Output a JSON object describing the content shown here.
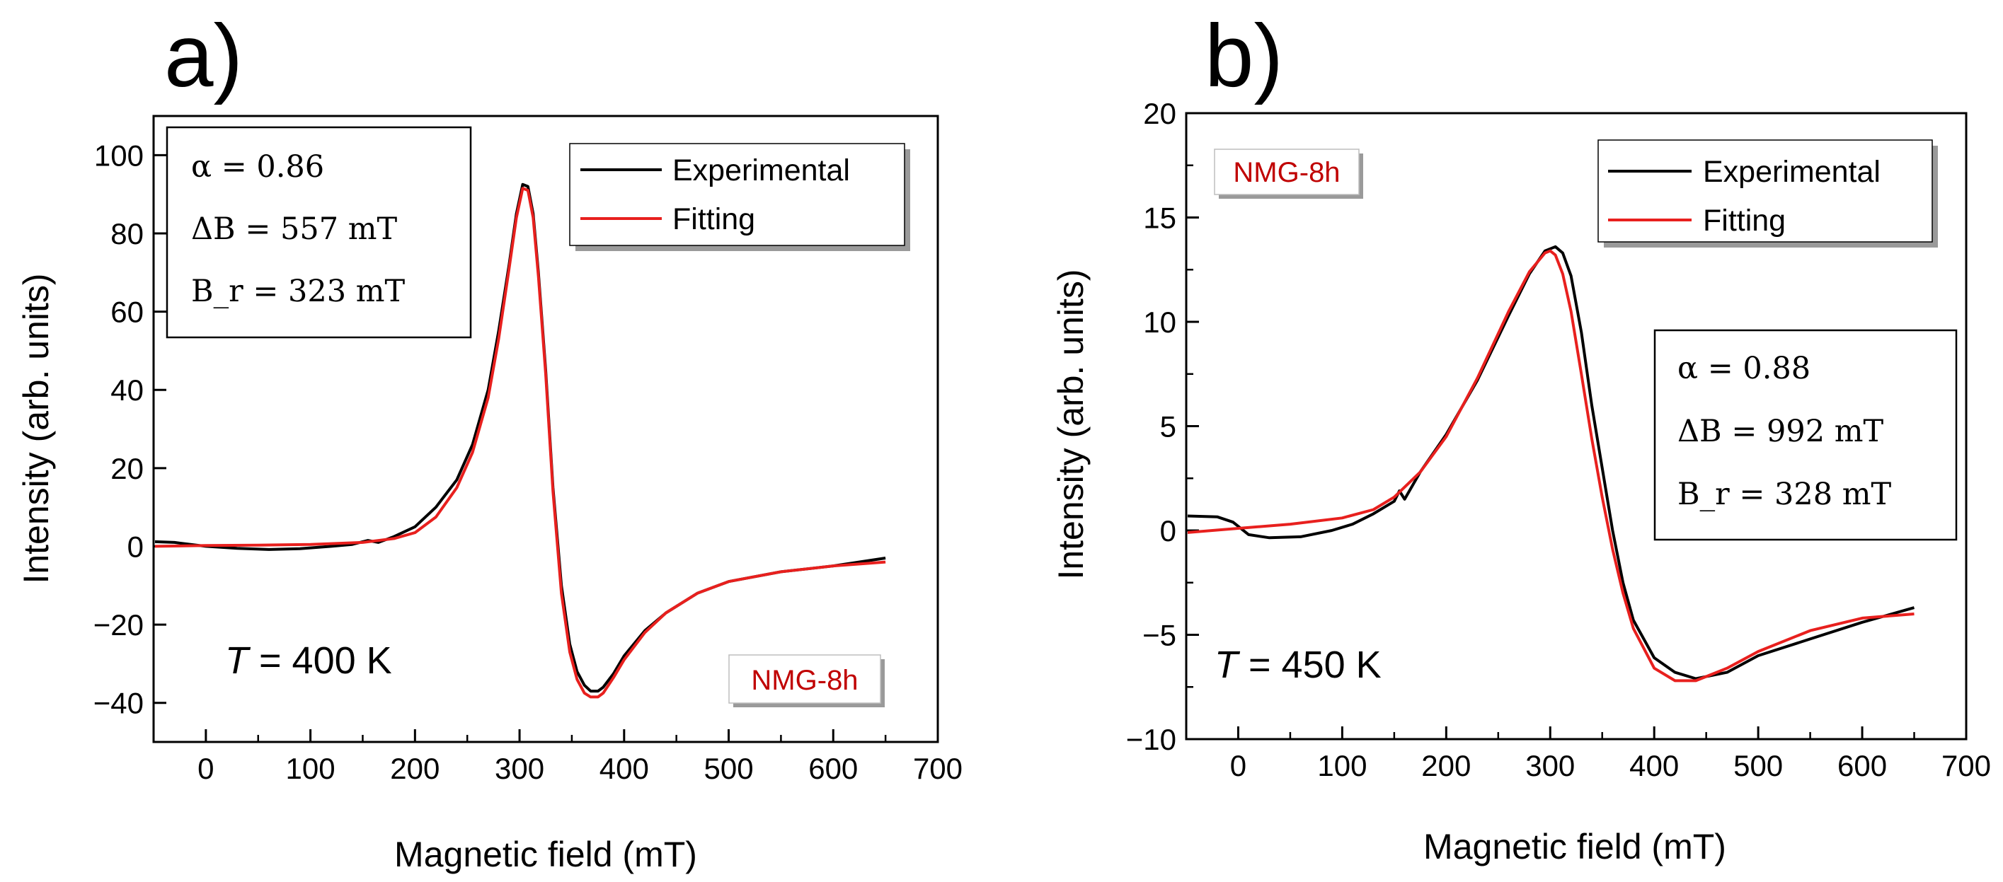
{
  "figure": {
    "colors": {
      "experimental": "#000000",
      "fitting": "#e8201e",
      "sample_label": "#c00000",
      "axis": "#000000"
    }
  },
  "chart_data": [
    {
      "type": "line",
      "panel_label": "a)",
      "xlabel": "Magnetic field (mT)",
      "ylabel": "Intensity (arb. units)",
      "xlim": [
        -50,
        700
      ],
      "ylim": [
        -50,
        110
      ],
      "grid": false,
      "x_ticks": [
        0,
        100,
        200,
        300,
        400,
        500,
        600,
        700
      ],
      "x_tick_labels": [
        "0",
        "100",
        "200",
        "300",
        "400",
        "500",
        "600",
        "700"
      ],
      "y_ticks": [
        -40,
        -20,
        0,
        20,
        40,
        60,
        80,
        100
      ],
      "y_tick_labels": [
        "−40",
        "−20",
        "0",
        "20",
        "40",
        "60",
        "80",
        "100"
      ],
      "legend": {
        "placement": "top-right",
        "entries": [
          "Experimental",
          "Fitting"
        ]
      },
      "parameters": {
        "placement": "top-left",
        "alpha": "α = 0.86",
        "delta_b": "ΔB = 557 mT",
        "b_r": "B_r = 323 mT"
      },
      "temperature": {
        "symbol": "T",
        "value": " = 400 K"
      },
      "sample_label": "NMG-8h",
      "sample_label_placement": "bottom-right",
      "series": [
        {
          "name": "Experimental",
          "x": [
            -50,
            -30,
            0,
            30,
            60,
            90,
            120,
            140,
            155,
            165,
            180,
            200,
            220,
            240,
            255,
            270,
            280,
            290,
            297,
            303,
            308,
            313,
            318,
            325,
            332,
            340,
            348,
            355,
            362,
            368,
            375,
            380,
            390,
            400,
            420,
            440,
            470,
            500,
            550,
            600,
            650
          ],
          "y": [
            1.2,
            1.0,
            0.0,
            -0.5,
            -0.8,
            -0.6,
            0.0,
            0.5,
            1.5,
            1.0,
            2.5,
            5.0,
            10.0,
            17.0,
            26.0,
            40.0,
            55.0,
            72.0,
            85.0,
            92.5,
            92.0,
            85.0,
            70.0,
            45.0,
            15.0,
            -10.0,
            -25.0,
            -32.0,
            -35.5,
            -37.0,
            -37.0,
            -36.0,
            -32.5,
            -28.0,
            -21.5,
            -17.0,
            -12.0,
            -9.0,
            -6.5,
            -5.0,
            -3.0
          ]
        },
        {
          "name": "Fitting",
          "x": [
            -50,
            0,
            50,
            100,
            150,
            180,
            200,
            220,
            240,
            255,
            270,
            280,
            290,
            297,
            303,
            308,
            313,
            318,
            325,
            332,
            340,
            348,
            355,
            362,
            368,
            375,
            380,
            390,
            400,
            420,
            440,
            470,
            500,
            550,
            600,
            650
          ],
          "y": [
            0.0,
            0.2,
            0.3,
            0.5,
            1.0,
            2.0,
            3.5,
            7.5,
            15.0,
            24.0,
            38.0,
            53.0,
            71.0,
            84.0,
            91.5,
            91.0,
            84.0,
            69.0,
            44.0,
            14.0,
            -12.0,
            -27.0,
            -34.0,
            -37.5,
            -38.5,
            -38.5,
            -37.5,
            -33.5,
            -29.0,
            -22.0,
            -17.0,
            -12.0,
            -9.0,
            -6.5,
            -5.0,
            -4.0
          ]
        }
      ]
    },
    {
      "type": "line",
      "panel_label": "b)",
      "xlabel": "Magnetic field (mT)",
      "ylabel": "Intensity (arb. units)",
      "xlim": [
        -50,
        700
      ],
      "ylim": [
        -10,
        20
      ],
      "grid": false,
      "x_ticks": [
        0,
        100,
        200,
        300,
        400,
        500,
        600,
        700
      ],
      "x_tick_labels": [
        "0",
        "100",
        "200",
        "300",
        "400",
        "500",
        "600",
        "700"
      ],
      "y_ticks": [
        -10,
        -5,
        0,
        5,
        10,
        15,
        20
      ],
      "y_tick_labels": [
        "−10",
        "−5",
        "0",
        "5",
        "10",
        "15",
        "20"
      ],
      "legend": {
        "placement": "top-right",
        "entries": [
          "Experimental",
          "Fitting"
        ]
      },
      "parameters": {
        "placement": "center-right",
        "alpha": "α = 0.88",
        "delta_b": "ΔB = 992 mT",
        "b_r": "B_r = 328 mT"
      },
      "temperature": {
        "symbol": "T",
        "value": " = 450 K"
      },
      "sample_label": "NMG-8h",
      "sample_label_placement": "top-left",
      "series": [
        {
          "name": "Experimental",
          "x": [
            -50,
            -20,
            -5,
            10,
            30,
            60,
            90,
            110,
            130,
            150,
            155,
            160,
            175,
            200,
            230,
            260,
            280,
            295,
            305,
            312,
            320,
            330,
            340,
            350,
            360,
            370,
            380,
            400,
            420,
            440,
            470,
            500,
            550,
            600,
            650
          ],
          "y": [
            0.7,
            0.65,
            0.4,
            -0.2,
            -0.35,
            -0.3,
            0.0,
            0.3,
            0.8,
            1.4,
            1.9,
            1.5,
            2.8,
            4.6,
            7.2,
            10.3,
            12.3,
            13.4,
            13.6,
            13.3,
            12.2,
            9.5,
            6.0,
            3.0,
            0.0,
            -2.5,
            -4.3,
            -6.1,
            -6.8,
            -7.1,
            -6.8,
            -6.0,
            -5.2,
            -4.4,
            -3.7
          ]
        },
        {
          "name": "Fitting",
          "x": [
            -50,
            0,
            50,
            100,
            130,
            150,
            175,
            200,
            230,
            260,
            280,
            295,
            300,
            305,
            312,
            320,
            330,
            340,
            350,
            360,
            370,
            380,
            400,
            420,
            440,
            470,
            500,
            550,
            600,
            650
          ],
          "y": [
            -0.1,
            0.1,
            0.3,
            0.6,
            1.0,
            1.6,
            2.8,
            4.5,
            7.3,
            10.5,
            12.4,
            13.3,
            13.4,
            13.2,
            12.3,
            10.5,
            7.5,
            4.4,
            1.6,
            -0.9,
            -3.0,
            -4.7,
            -6.6,
            -7.2,
            -7.2,
            -6.6,
            -5.8,
            -4.8,
            -4.2,
            -4.0
          ]
        }
      ]
    }
  ]
}
